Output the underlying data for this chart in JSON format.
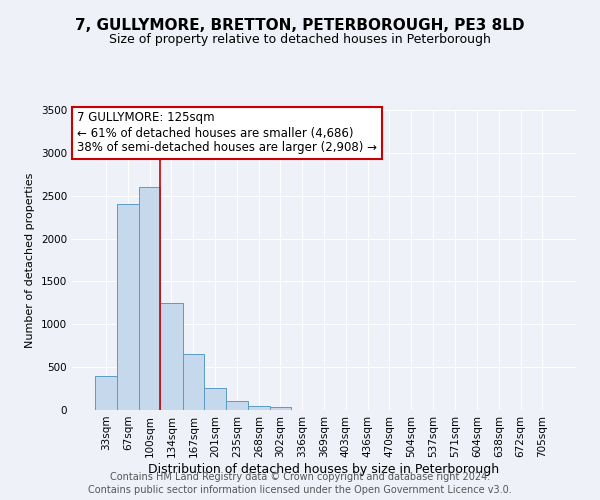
{
  "title": "7, GULLYMORE, BRETTON, PETERBOROUGH, PE3 8LD",
  "subtitle": "Size of property relative to detached houses in Peterborough",
  "xlabel": "Distribution of detached houses by size in Peterborough",
  "ylabel": "Number of detached properties",
  "categories": [
    "33sqm",
    "67sqm",
    "100sqm",
    "134sqm",
    "167sqm",
    "201sqm",
    "235sqm",
    "268sqm",
    "302sqm",
    "336sqm",
    "369sqm",
    "403sqm",
    "436sqm",
    "470sqm",
    "504sqm",
    "537sqm",
    "571sqm",
    "604sqm",
    "638sqm",
    "672sqm",
    "705sqm"
  ],
  "bin_edges": [
    16.5,
    50.5,
    83.5,
    116.5,
    150.5,
    183.5,
    217.5,
    250.5,
    283.5,
    316.5,
    350.5,
    383.5,
    416.5,
    449.5,
    483.5,
    516.5,
    550.5,
    583.5,
    616.5,
    650.5,
    683.5,
    716.5
  ],
  "bar_heights": [
    400,
    2400,
    2600,
    1250,
    650,
    260,
    100,
    50,
    30,
    0,
    0,
    0,
    0,
    0,
    0,
    0,
    0,
    0,
    0,
    0,
    0
  ],
  "bar_color": "#c5d8ec",
  "bar_edge_color": "#5a9cc5",
  "vline_color": "#cc0000",
  "ylim": [
    0,
    3500
  ],
  "yticks": [
    0,
    500,
    1000,
    1500,
    2000,
    2500,
    3000,
    3500
  ],
  "annotation_line1": "7 GULLYMORE: 125sqm",
  "annotation_line2": "← 61% of detached houses are smaller (4,686)",
  "annotation_line3": "38% of semi-detached houses are larger (2,908) →",
  "footer_line1": "Contains HM Land Registry data © Crown copyright and database right 2024.",
  "footer_line2": "Contains public sector information licensed under the Open Government Licence v3.0.",
  "background_color": "#eef2f8",
  "grid_color": "#ffffff",
  "title_fontsize": 11,
  "subtitle_fontsize": 9,
  "xlabel_fontsize": 9,
  "ylabel_fontsize": 8,
  "annotation_fontsize": 8.5,
  "footer_fontsize": 7,
  "tick_fontsize": 7.5
}
